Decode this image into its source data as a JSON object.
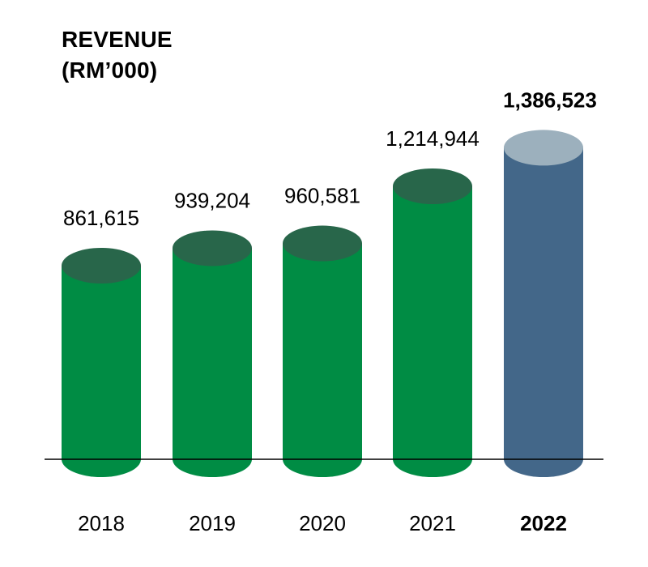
{
  "title": {
    "line1": "REVENUE",
    "line2": "(RM’000)"
  },
  "chart_data": {
    "type": "bar",
    "style": "3d-cylinder",
    "title": "REVENUE (RM’000)",
    "categories": [
      "2018",
      "2019",
      "2020",
      "2021",
      "2022"
    ],
    "values": [
      861615,
      939204,
      960581,
      1214944,
      1386523
    ],
    "value_labels": [
      "861,615",
      "939,204",
      "960,581",
      "1,214,944",
      "1,386,523"
    ],
    "highlight": "2022",
    "colors": {
      "bar": "#008c44",
      "bar_top": "#28664a",
      "highlight_bar": "#436789",
      "highlight_top": "#9cb0bd",
      "baseline": "#000000"
    },
    "grid": false,
    "legend": "none"
  }
}
